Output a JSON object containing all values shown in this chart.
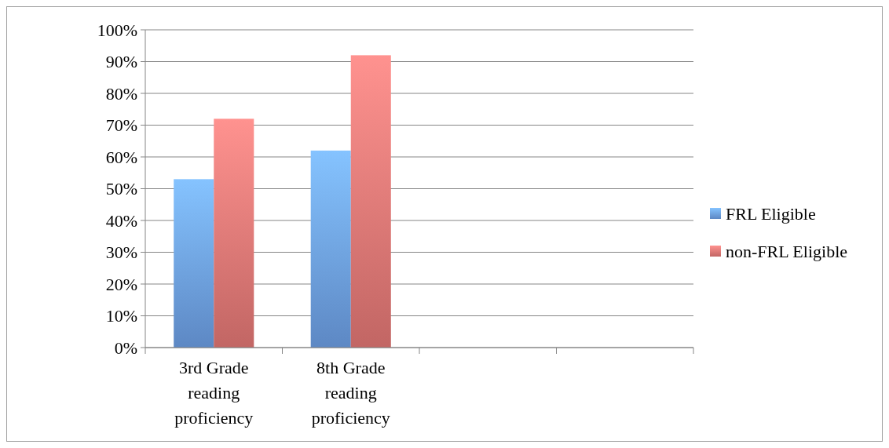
{
  "chart_data": {
    "type": "bar",
    "categories": [
      "3rd Grade reading proficiency",
      "8th Grade reading proficiency",
      null,
      null
    ],
    "series": [
      {
        "name": "FRL Eligible",
        "color": "#6fa3ea",
        "values": [
          53,
          62,
          null,
          null
        ]
      },
      {
        "name": "non-FRL Eligible",
        "color": "#e87a78",
        "values": [
          72,
          92,
          null,
          null
        ]
      }
    ],
    "ylim": [
      0,
      100
    ],
    "yticks": [
      {
        "value": 0,
        "label": "0%"
      },
      {
        "value": 10,
        "label": "10%"
      },
      {
        "value": 20,
        "label": "20%"
      },
      {
        "value": 30,
        "label": "30%"
      },
      {
        "value": 40,
        "label": "40%"
      },
      {
        "value": 50,
        "label": "50%"
      },
      {
        "value": 60,
        "label": "60%"
      },
      {
        "value": 70,
        "label": "70%"
      },
      {
        "value": 80,
        "label": "80%"
      },
      {
        "value": 90,
        "label": "90%"
      },
      {
        "value": 100,
        "label": "100%"
      }
    ],
    "grid": "y",
    "legend": "right"
  }
}
